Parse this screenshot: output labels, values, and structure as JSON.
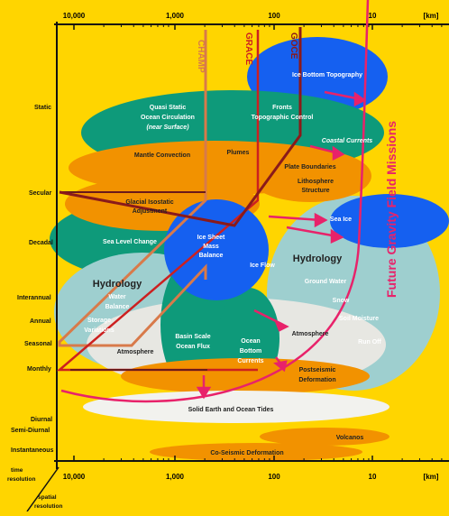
{
  "axis": {
    "top_ticks": [
      "10,000",
      "1,000",
      "100",
      "10",
      "[km]"
    ],
    "bottom_ticks": [
      "10,000",
      "1,000",
      "100",
      "10",
      "[km]"
    ],
    "time_labels": [
      "Static",
      "Secular",
      "Decadal",
      "Interannual",
      "Annual",
      "Seasonal",
      "Monthly",
      "Diurnal",
      "Semi-Diurnal",
      "Instantaneous"
    ],
    "time_axis_title": "time resolution",
    "spatial_axis_title": "spatial resolution"
  },
  "missions": {
    "champ": "CHAMP",
    "grace": "GRACE",
    "goce": "GOCE",
    "future": "Future Gravity Field Missions"
  },
  "phenomena": {
    "ice_bottom": "Ice Bottom Topography",
    "ocean_circ_1": "Quasi Static",
    "ocean_circ_2": "Ocean Circulation",
    "ocean_circ_3": "(near Surface)",
    "fronts_1": "Fronts",
    "fronts_2": "Topographic Control",
    "coastal": "Coastal Currents",
    "mantle": "Mantle Convection",
    "plumes": "Plumes",
    "plate": "Plate Boundaries",
    "litho_1": "Lithosphere",
    "litho_2": "Structure",
    "gia_1": "Glacial Isostatic",
    "gia_2": "Adjustment",
    "sea_ice": "Sea Ice",
    "sea_level": "Sea Level Change",
    "ice_sheet_1": "Ice Sheet",
    "ice_sheet_2": "Mass",
    "ice_sheet_3": "Balance",
    "ice_flow": "Ice Flow",
    "hydrology_right": "Hydrology",
    "ground_water": "Ground Water",
    "snow": "Snow",
    "soil_moisture": "Soil Moisture",
    "run_off": "Run Off",
    "hydrology_left": "Hydrology",
    "water_1": "Water",
    "water_2": "Balance",
    "storage_1": "Storage",
    "storage_2": "Variations",
    "atmosphere_left": "Atmosphere",
    "basin_1": "Basin Scale",
    "basin_2": "Ocean Flux",
    "obc_1": "Ocean",
    "obc_2": "Bottom",
    "obc_3": "Currents",
    "atmosphere_right": "Atmosphere",
    "postseismic_1": "Postseismic",
    "postseismic_2": "Deformation",
    "tides": "Solid Earth and Ocean Tides",
    "volcanos": "Volcanos",
    "coseismic": "Co-Seismic Deformation"
  },
  "colors": {
    "background": "#ffd500",
    "teal": "#0e9a7a",
    "orange": "#f29200",
    "blue": "#1560f0",
    "light_teal": "#9ecfcf",
    "light_grey": "#e7e7e2",
    "future_line": "#e8226a",
    "champ_line": "#d87a4a",
    "grace_line": "#cc2020",
    "goce_line": "#8a1a1a"
  }
}
